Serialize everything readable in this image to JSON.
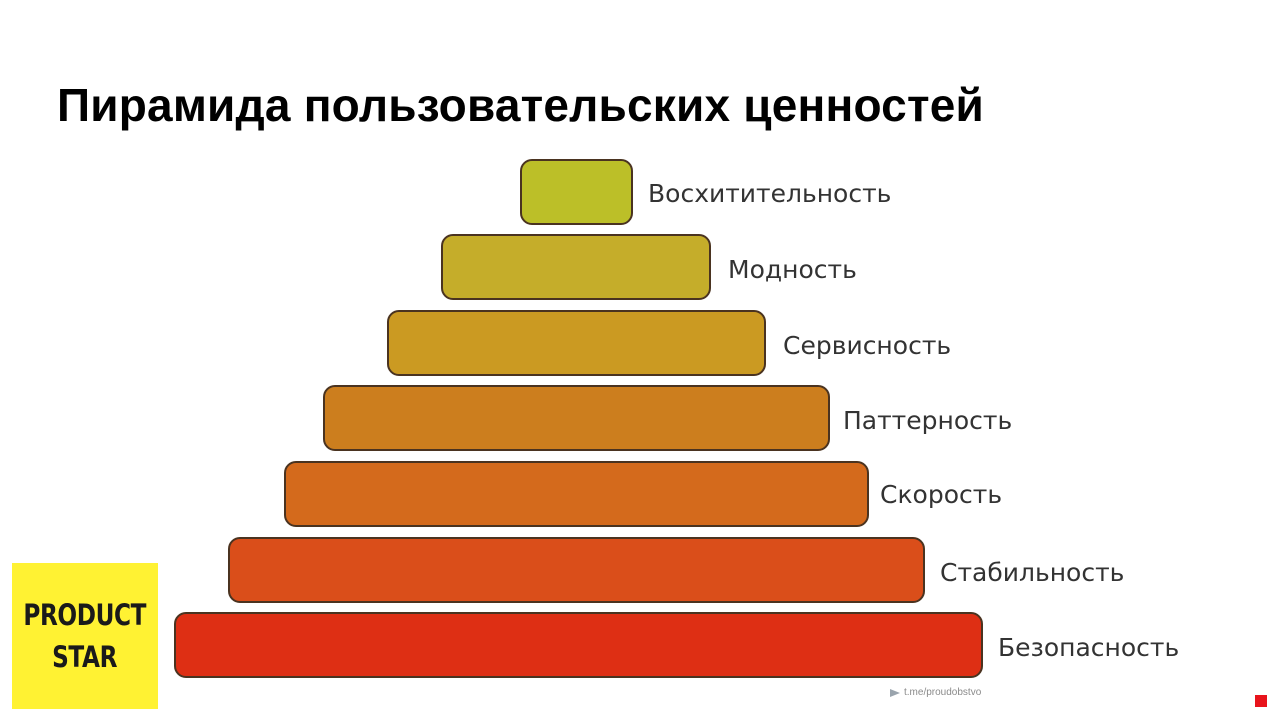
{
  "title": "Пирамида пользовательских ценностей",
  "pyramid": {
    "levels": [
      {
        "label": "Восхитительность",
        "color": "#bcbf28"
      },
      {
        "label": "Модность",
        "color": "#c5ad2a"
      },
      {
        "label": "Сервисность",
        "color": "#cb9a22"
      },
      {
        "label": "Паттерность",
        "color": "#cc7e1e"
      },
      {
        "label": "Скорость",
        "color": "#d46a1c"
      },
      {
        "label": "Стабильность",
        "color": "#da4e1a"
      },
      {
        "label": "Безопасность",
        "color": "#de2f14"
      }
    ]
  },
  "logo": {
    "line1": "PRODUCT",
    "line2": "STAR",
    "background": "#fff233"
  },
  "watermark": {
    "text": "t.me/proudobstvo",
    "icon": "telegram-icon"
  }
}
